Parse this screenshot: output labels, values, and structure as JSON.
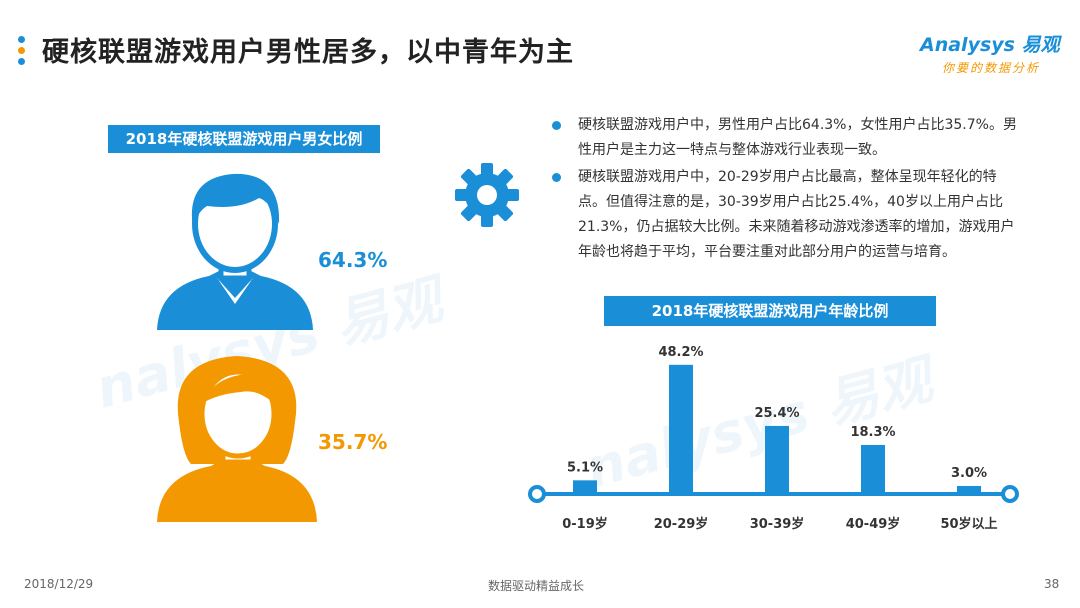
{
  "header": {
    "title": "硬核联盟游戏用户男性居多，以中青年为主",
    "logo_brand": "Analysys 易观",
    "logo_tagline": "你要的数据分析",
    "accent_dots": [
      "#1a8fd8",
      "#f39800",
      "#1a8fd8"
    ]
  },
  "gender": {
    "label": "2018年硬核联盟游戏用户男女比例",
    "male_icon": "male-user-icon",
    "female_icon": "female-user-icon",
    "male_pct_text": "64.3%",
    "female_pct_text": "35.7%"
  },
  "colors": {
    "blue": "#1a8fd8",
    "orange": "#f39800"
  },
  "bullets": [
    "硬核联盟游戏用户中，男性用户占比64.3%，女性用户占比35.7%。男性用户是主力这一特点与整体游戏行业表现一致。",
    "硬核联盟游戏用户中，20-29岁用户占比最高，整体呈现年轻化的特点。但值得注意的是，30-39岁用户占比25.4%，40岁以上用户占比21.3%，仍占据较大比例。未来随着移动游戏渗透率的增加，游戏用户年龄也将趋于平均，平台要注重对此部分用户的运营与培育。"
  ],
  "chart_data": {
    "type": "bar",
    "title": "2018年硬核联盟游戏用户年龄比例",
    "categories": [
      "0-19岁",
      "20-29岁",
      "30-39岁",
      "40-49岁",
      "50岁以上"
    ],
    "values": [
      5.1,
      48.2,
      25.4,
      18.3,
      3.0
    ],
    "value_labels": [
      "5.1%",
      "48.2%",
      "25.4%",
      "18.3%",
      "3.0%"
    ],
    "unit": "%",
    "ylim": [
      0,
      50
    ],
    "grid": false,
    "legend": "none",
    "bar_color": "#1a8fd8"
  },
  "footer": {
    "date": "2018/12/29",
    "slogan": "数据驱动精益成长",
    "page": "38"
  }
}
